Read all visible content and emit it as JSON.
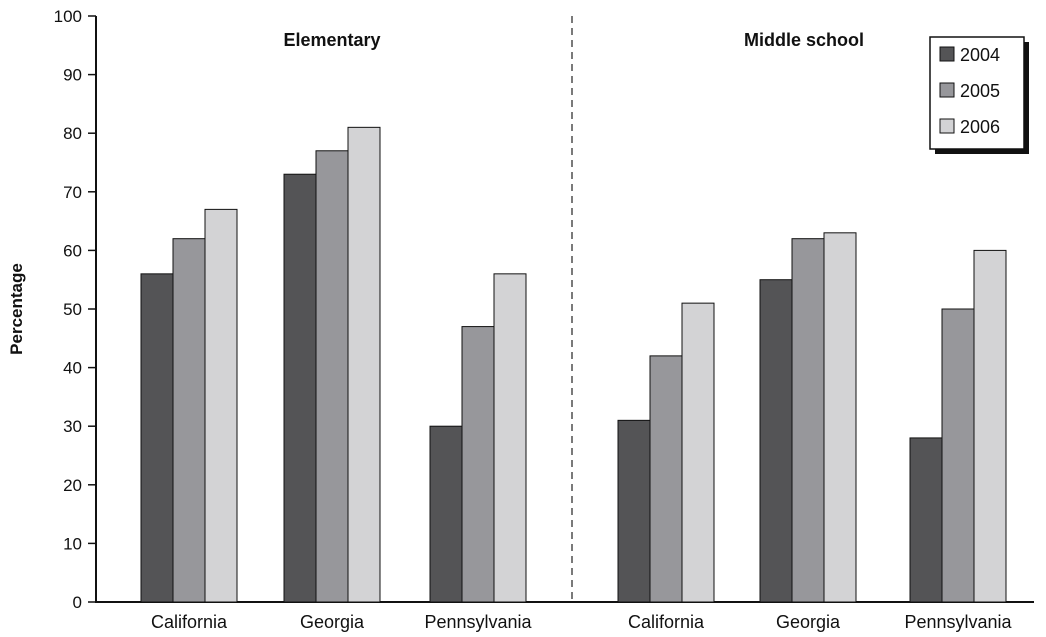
{
  "chart_data": {
    "type": "bar",
    "ylabel": "Percentage",
    "ylim": [
      0,
      100
    ],
    "yticks": [
      0,
      10,
      20,
      30,
      40,
      50,
      60,
      70,
      80,
      90,
      100
    ],
    "groups": [
      {
        "name": "Elementary",
        "categories": [
          "California",
          "Georgia",
          "Pennsylvania"
        ],
        "series": [
          {
            "name": "2004",
            "values": [
              56,
              73,
              30
            ]
          },
          {
            "name": "2005",
            "values": [
              62,
              77,
              47
            ]
          },
          {
            "name": "2006",
            "values": [
              67,
              81,
              56
            ]
          }
        ]
      },
      {
        "name": "Middle school",
        "categories": [
          "California",
          "Georgia",
          "Pennsylvania"
        ],
        "series": [
          {
            "name": "2004",
            "values": [
              31,
              55,
              28
            ]
          },
          {
            "name": "2005",
            "values": [
              42,
              62,
              50
            ]
          },
          {
            "name": "2006",
            "values": [
              51,
              63,
              60
            ]
          }
        ]
      }
    ],
    "legend": {
      "placement": "top-right",
      "entries": [
        {
          "label": "2004",
          "color": "#545456"
        },
        {
          "label": "2005",
          "color": "#97979b"
        },
        {
          "label": "2006",
          "color": "#d3d3d5"
        }
      ]
    },
    "grid": false,
    "divider": "dashed"
  }
}
